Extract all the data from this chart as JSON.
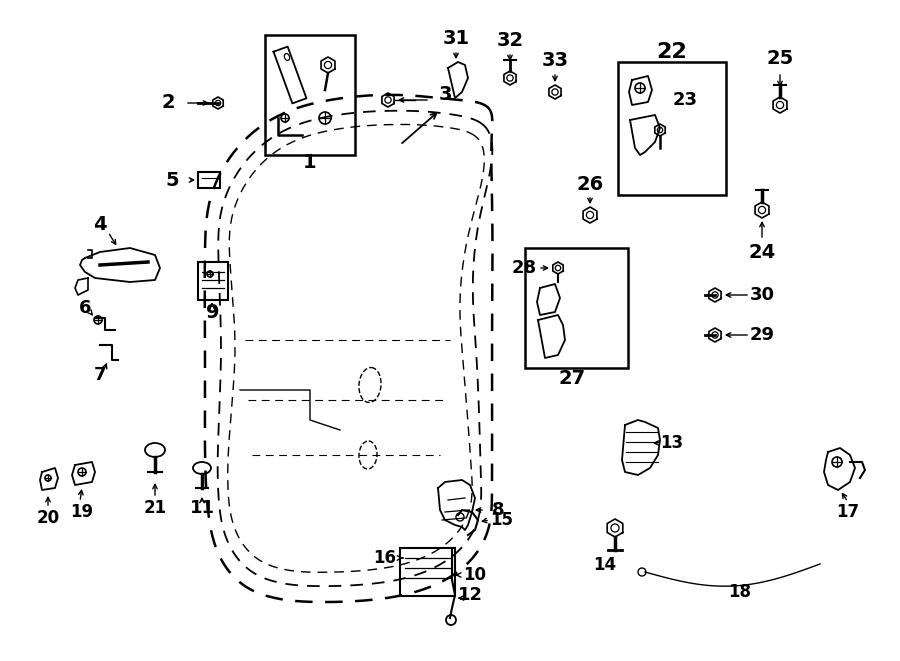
{
  "title": "",
  "bg_color": "#ffffff",
  "line_color": "#000000",
  "fig_width": 9.0,
  "fig_height": 6.61,
  "dpi": 100
}
